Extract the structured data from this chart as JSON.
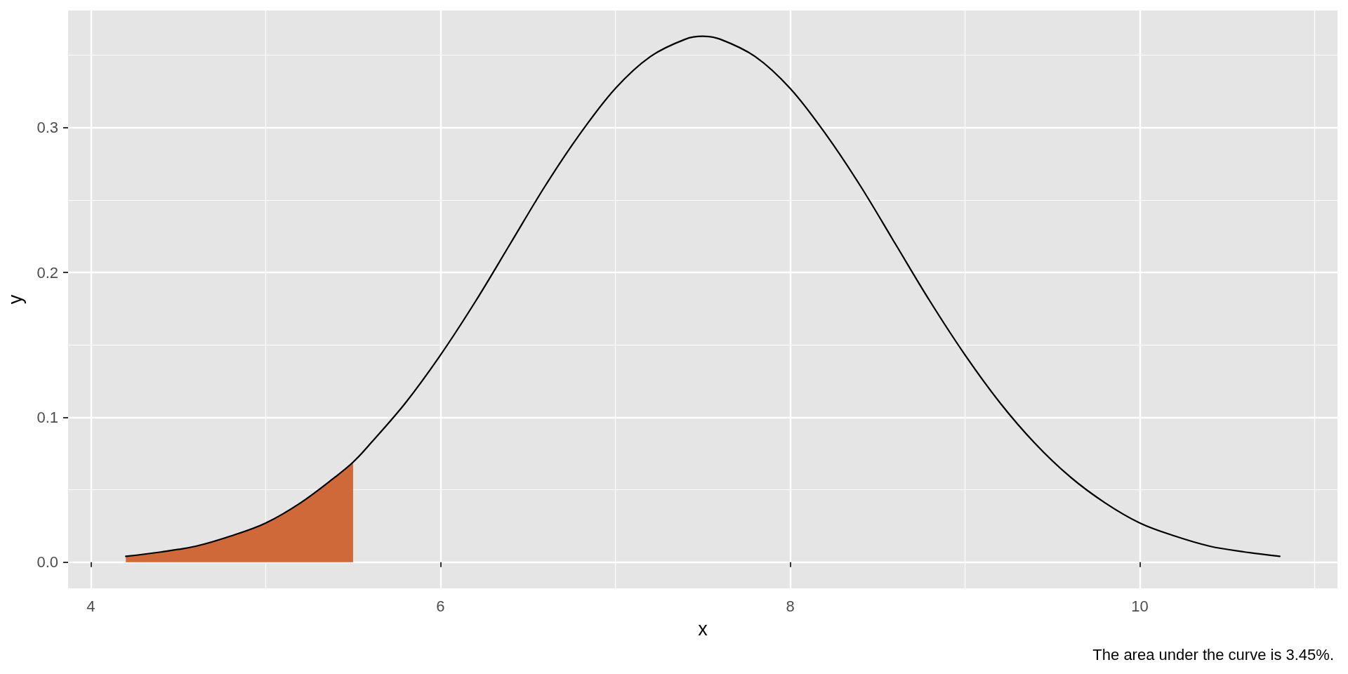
{
  "chart_data": {
    "type": "line",
    "xlabel": "x",
    "ylabel": "y",
    "annotations": [
      "The area under the curve is 3.45%."
    ],
    "xlim": [
      3.87,
      11.13
    ],
    "xticks": [
      4,
      6,
      8,
      10
    ],
    "ylim": [
      -0.0181,
      0.3808
    ],
    "yticks": [
      {
        "value": 0,
        "label": "0.0"
      },
      0.1,
      0.2,
      0.3
    ],
    "grid": true,
    "marker": "none",
    "line_style": "solid",
    "series": [
      {
        "type": "area",
        "color": "#d0693a",
        "x": [
          4.2,
          4.4,
          4.6,
          4.8,
          5.0,
          5.2,
          5.4,
          5.5
        ],
        "values": [
          0.004,
          0.007,
          0.011,
          0.018,
          0.027,
          0.041,
          0.059,
          0.069
        ]
      },
      {
        "color": "#000000",
        "x": [
          4.2,
          4.4,
          4.6,
          4.8,
          5.0,
          5.2,
          5.4,
          5.5,
          5.6,
          5.8,
          6.0,
          6.2,
          6.4,
          6.6,
          6.8,
          7.0,
          7.2,
          7.4,
          7.5,
          7.6,
          7.8,
          8.0,
          8.2,
          8.4,
          8.6,
          8.8,
          9.0,
          9.2,
          9.4,
          9.6,
          9.8,
          10.0,
          10.2,
          10.4,
          10.6,
          10.8
        ],
        "values": [
          0.004,
          0.007,
          0.011,
          0.018,
          0.027,
          0.041,
          0.059,
          0.069,
          0.082,
          0.11,
          0.143,
          0.18,
          0.22,
          0.26,
          0.296,
          0.327,
          0.349,
          0.361,
          0.363,
          0.361,
          0.349,
          0.327,
          0.296,
          0.26,
          0.22,
          0.18,
          0.143,
          0.11,
          0.082,
          0.059,
          0.041,
          0.027,
          0.018,
          0.011,
          0.007,
          0.004
        ]
      }
    ]
  }
}
